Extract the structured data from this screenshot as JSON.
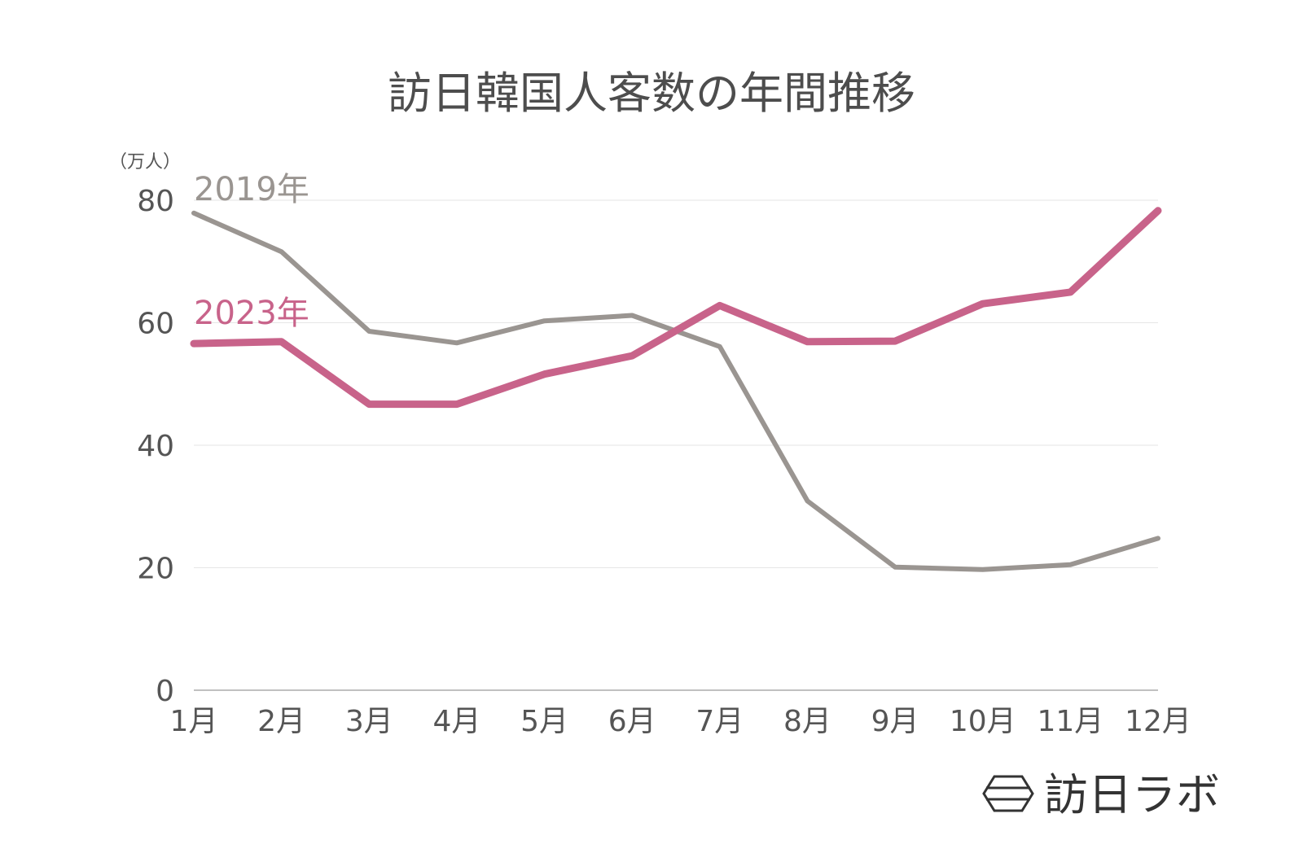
{
  "chart_data": {
    "type": "line",
    "title": "訪日韓国人客数の年間推移",
    "unit": "（万人）",
    "categories": [
      "1月",
      "2月",
      "3月",
      "4月",
      "5月",
      "6月",
      "7月",
      "8月",
      "9月",
      "10月",
      "11月",
      "12月"
    ],
    "ylim": [
      0,
      80
    ],
    "yticks": [
      0,
      20,
      40,
      60,
      80
    ],
    "grid": true,
    "series": [
      {
        "name": "2019年",
        "color": "#9a9591",
        "values": [
          77.9,
          71.6,
          58.6,
          56.7,
          60.3,
          61.2,
          56.1,
          30.9,
          20.1,
          19.7,
          20.5,
          24.8
        ]
      },
      {
        "name": "2023年",
        "color": "#c8638a",
        "values": [
          56.6,
          56.9,
          46.7,
          46.7,
          51.6,
          54.6,
          62.8,
          56.9,
          57.0,
          63.1,
          65.0,
          78.3
        ]
      }
    ]
  },
  "logo": {
    "text": "訪日ラボ",
    "icon": "hexagon-logo-icon"
  }
}
